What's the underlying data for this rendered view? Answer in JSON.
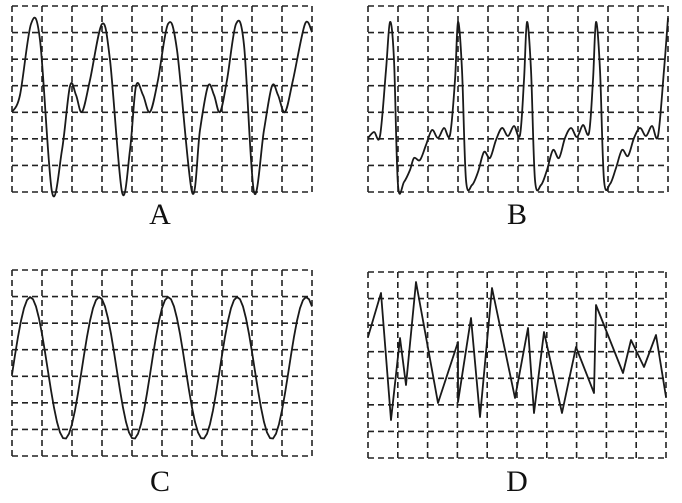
{
  "panels": [
    {
      "label": "A",
      "waveform": "periodic-complex"
    },
    {
      "label": "B",
      "waveform": "periodic-spikes"
    },
    {
      "label": "C",
      "waveform": "sine"
    },
    {
      "label": "D",
      "waveform": "irregular-noise"
    }
  ],
  "grid": {
    "columns": 10,
    "rows": 7,
    "line_style": "dashed"
  },
  "colors": {
    "trace": "#1a1a1a",
    "grid": "#222222",
    "background": "#ffffff"
  }
}
